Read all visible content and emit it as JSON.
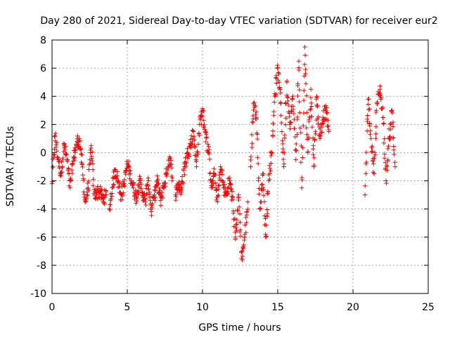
{
  "chart_data": {
    "type": "scatter",
    "title": "Day 280 of 2021, Sidereal Day-to-day VTEC variation (SDTVAR) for receiver eur2",
    "xlabel": "GPS time / hours",
    "ylabel": "SDTVAR / TECUs",
    "xlim": [
      0,
      25
    ],
    "ylim": [
      -10,
      8
    ],
    "xticks": [
      0,
      5,
      10,
      15,
      20,
      25
    ],
    "yticks": [
      -10,
      -8,
      -6,
      -4,
      -2,
      0,
      2,
      4,
      6,
      8
    ],
    "grid": true,
    "marker": "plus",
    "marker_color": "#ff0000",
    "series": [
      {
        "name": "SDTVAR",
        "segments": [
          {
            "x": [
              0.0,
              0.2,
              0.4,
              0.6,
              0.8,
              1.0,
              1.2,
              1.4,
              1.6,
              1.8,
              2.0,
              2.2,
              2.4,
              2.6,
              2.8,
              3.0,
              3.2,
              3.4,
              3.6
            ],
            "y": [
              -2.2,
              1.2,
              -0.5,
              -1.5,
              0.5,
              -0.5,
              -2.5,
              -0.6,
              0.5,
              1.0,
              -0.8,
              -3.5,
              -2.5,
              0.5,
              -3.0,
              -2.8,
              -2.8,
              -3.3,
              -3.0
            ]
          },
          {
            "x": [
              3.8,
              4.0,
              4.2,
              4.4,
              4.6,
              4.8,
              5.0,
              5.2,
              5.4,
              5.6,
              5.8,
              6.0,
              6.2,
              6.4,
              6.6,
              6.8,
              7.0,
              7.2,
              7.4,
              7.6,
              7.8,
              8.0
            ],
            "y": [
              -4.0,
              -2.5,
              -1.2,
              -2.0,
              -3.0,
              -2.2,
              -0.8,
              -1.5,
              -2.5,
              -3.2,
              -2.0,
              -2.8,
              -3.5,
              -2.0,
              -4.2,
              -3.0,
              -2.0,
              -3.4,
              -2.5,
              -1.5,
              -0.3,
              -1.8
            ]
          },
          {
            "x": [
              8.2,
              8.4,
              8.6,
              8.8,
              9.0,
              9.2,
              9.4,
              9.6,
              9.8,
              10.0,
              10.2,
              10.4,
              10.6,
              10.8,
              11.0,
              11.2,
              11.4,
              11.6,
              11.8,
              12.0,
              12.2,
              12.4,
              12.6,
              12.8,
              13.0
            ],
            "y": [
              -3.0,
              -2.2,
              -2.8,
              -1.0,
              0.0,
              0.5,
              1.5,
              -1.0,
              2.0,
              3.0,
              1.5,
              0.0,
              -2.5,
              -1.5,
              -3.5,
              -1.0,
              -2.5,
              -3.0,
              -2.0,
              -3.2,
              -6.0,
              -3.0,
              -7.5,
              -6.0,
              -3.5
            ]
          },
          {
            "x": [
              13.2,
              13.4,
              13.6,
              13.8,
              14.0,
              14.2,
              14.4,
              14.6,
              14.8,
              15.0,
              15.2,
              15.4,
              15.6,
              15.8,
              16.0,
              16.2,
              16.4,
              16.6,
              16.8,
              17.0,
              17.2,
              17.4,
              17.6,
              17.8,
              18.0,
              18.2,
              18.4
            ],
            "y": [
              -1.0,
              3.5,
              2.5,
              -4.0,
              -1.5,
              -6.0,
              -2.0,
              0.0,
              4.0,
              6.0,
              3.5,
              -1.0,
              5.0,
              2.0,
              4.0,
              -0.5,
              6.5,
              -2.5,
              7.5,
              0.0,
              4.5,
              -1.0,
              4.0,
              1.0,
              2.5,
              3.0,
              1.5
            ]
          },
          {
            "x": [
              20.8,
              21.0,
              21.2,
              21.4,
              21.6,
              21.8,
              22.0,
              22.2,
              22.4,
              22.6,
              22.8
            ],
            "y": [
              -3.0,
              3.8,
              1.0,
              -1.5,
              3.5,
              4.5,
              2.5,
              -2.0,
              1.0,
              3.0,
              -1.0
            ]
          }
        ]
      }
    ]
  }
}
